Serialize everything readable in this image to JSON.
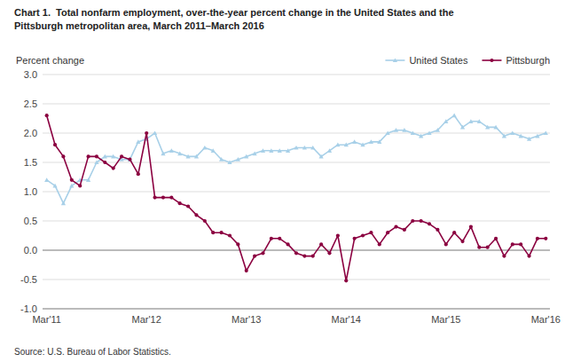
{
  "chart_data": {
    "type": "line",
    "title": [
      "Chart 1.  Total nonfarm employment, over-the-year percent change in the United States and the",
      "Pittsburgh metropolitan area, March 2011–March 2016"
    ],
    "ylabel": "Percent change",
    "source": "Source: U.S. Bureau of Labor Statistics.",
    "categories": [
      "Mar'11",
      null,
      null,
      null,
      null,
      null,
      null,
      null,
      null,
      null,
      null,
      null,
      "Mar'12",
      null,
      null,
      null,
      null,
      null,
      null,
      null,
      null,
      null,
      null,
      null,
      "Mar'13",
      null,
      null,
      null,
      null,
      null,
      null,
      null,
      null,
      null,
      null,
      null,
      "Mar'14",
      null,
      null,
      null,
      null,
      null,
      null,
      null,
      null,
      null,
      null,
      null,
      "Mar'15",
      null,
      null,
      null,
      null,
      null,
      null,
      null,
      null,
      null,
      null,
      null,
      "Mar'16"
    ],
    "ylim": [
      -1.0,
      3.0
    ],
    "yticks": [
      {
        "value": -1.0,
        "label": "-1.0"
      },
      -0.5,
      {
        "value": 0.0,
        "label": "0.0"
      },
      0.5,
      {
        "value": 1.0,
        "label": "1.0"
      },
      1.5,
      {
        "value": 2.0,
        "label": "2.0"
      },
      2.5,
      {
        "value": 3.0,
        "label": "3.0"
      }
    ],
    "grid": true,
    "legend": "upper right",
    "series": [
      {
        "name": "United States",
        "color": "#a8d0e8",
        "marker": "triangle",
        "values": [
          1.2,
          1.1,
          0.8,
          1.1,
          1.2,
          1.2,
          1.5,
          1.6,
          1.6,
          1.55,
          1.55,
          1.85,
          1.9,
          2.0,
          1.65,
          1.7,
          1.65,
          1.6,
          1.6,
          1.75,
          1.7,
          1.55,
          1.5,
          1.55,
          1.6,
          1.65,
          1.7,
          1.7,
          1.7,
          1.7,
          1.75,
          1.75,
          1.75,
          1.6,
          1.7,
          1.8,
          1.8,
          1.85,
          1.8,
          1.85,
          1.85,
          2.0,
          2.05,
          2.05,
          2.0,
          1.95,
          2.0,
          2.05,
          2.2,
          2.3,
          2.1,
          2.2,
          2.2,
          2.1,
          2.1,
          1.95,
          2.0,
          1.95,
          1.9,
          1.95,
          2.0
        ]
      },
      {
        "name": "Pittsburgh",
        "color": "#8b0040",
        "marker": "circle",
        "values": [
          2.3,
          1.8,
          1.6,
          1.2,
          1.1,
          1.6,
          1.6,
          1.5,
          1.4,
          1.6,
          1.55,
          1.3,
          2.0,
          0.9,
          0.9,
          0.9,
          0.8,
          0.75,
          0.6,
          0.5,
          0.3,
          0.3,
          0.25,
          0.1,
          -0.35,
          -0.1,
          -0.05,
          0.2,
          0.2,
          0.1,
          -0.05,
          -0.1,
          -0.1,
          0.1,
          -0.05,
          0.25,
          -0.52,
          0.2,
          0.25,
          0.3,
          0.1,
          0.3,
          0.4,
          0.35,
          0.5,
          0.5,
          0.45,
          0.35,
          0.1,
          0.3,
          0.15,
          0.4,
          0.05,
          0.05,
          0.2,
          -0.1,
          0.1,
          0.1,
          -0.1,
          0.2,
          0.2
        ]
      }
    ]
  }
}
